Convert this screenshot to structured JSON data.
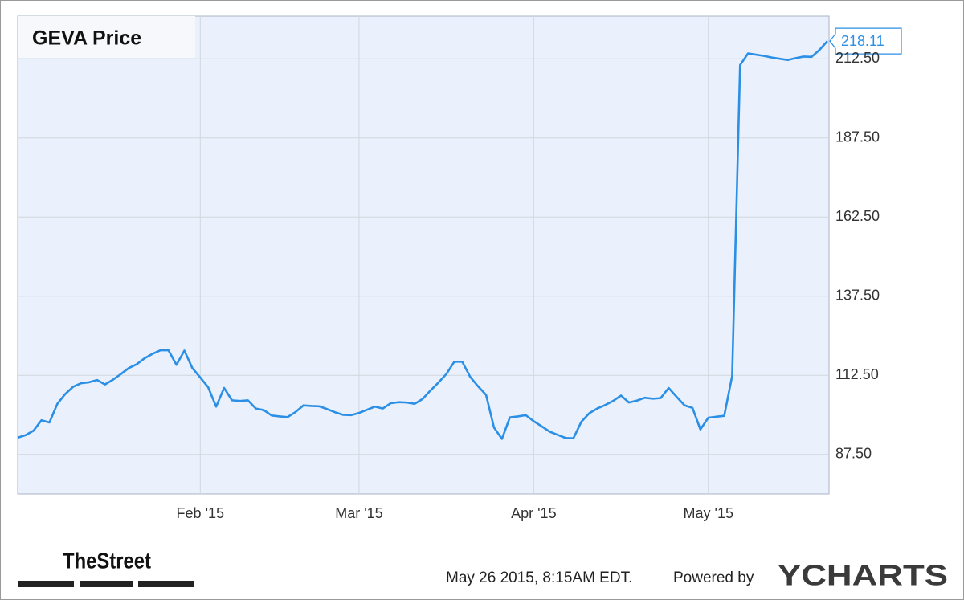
{
  "chart_data": {
    "type": "line",
    "title": "GEVA Price",
    "color": "#2b8fe6",
    "categories": [
      null,
      null,
      null,
      null,
      null,
      null,
      null,
      null,
      null,
      null,
      null,
      null,
      null,
      null,
      null,
      null,
      null,
      null,
      null,
      null,
      null,
      null,
      null,
      "Feb '15",
      null,
      null,
      null,
      null,
      null,
      null,
      null,
      null,
      null,
      null,
      null,
      null,
      null,
      null,
      null,
      null,
      null,
      null,
      null,
      "Mar '15",
      null,
      null,
      null,
      null,
      null,
      null,
      null,
      null,
      null,
      null,
      null,
      null,
      null,
      null,
      null,
      null,
      null,
      null,
      null,
      null,
      null,
      "Apr '15",
      null,
      null,
      null,
      null,
      null,
      null,
      null,
      null,
      null,
      null,
      null,
      null,
      null,
      null,
      null,
      null,
      null,
      null,
      null,
      null,
      null,
      "May '15",
      null,
      null,
      null,
      null,
      null,
      null,
      null,
      null,
      null,
      null,
      null,
      null,
      null,
      null,
      null
    ],
    "values": [
      92.8,
      93.6,
      95.0,
      98.3,
      97.6,
      103.5,
      106.6,
      108.9,
      110.0,
      110.3,
      111.0,
      109.6,
      111.1,
      112.9,
      114.8,
      116.0,
      117.9,
      119.3,
      120.4,
      120.4,
      115.8,
      120.3,
      114.8,
      111.8,
      108.7,
      102.6,
      108.5,
      104.6,
      104.4,
      104.6,
      102.0,
      101.5,
      99.8,
      99.5,
      99.3,
      100.9,
      103.0,
      102.8,
      102.7,
      101.8,
      100.8,
      100.0,
      99.9,
      100.6,
      101.6,
      102.6,
      102.0,
      103.7,
      104.0,
      103.9,
      103.5,
      105.0,
      107.7,
      110.2,
      112.9,
      116.8,
      116.8,
      112.0,
      109.0,
      106.3,
      96.0,
      92.4,
      99.2,
      99.5,
      99.9,
      98.0,
      96.4,
      94.7,
      93.7,
      92.7,
      92.6,
      97.8,
      100.5,
      102.0,
      103.1,
      104.4,
      106.1,
      103.9,
      104.5,
      105.4,
      105.1,
      105.3,
      108.5,
      105.7,
      103.0,
      102.2,
      95.4,
      99.1,
      99.4,
      99.7,
      112.3,
      210.5,
      214.2,
      213.8,
      213.4,
      212.9,
      212.5,
      212.1,
      212.7,
      213.2,
      213.1,
      215.3,
      218.11
    ],
    "ylim": [
      75,
      226
    ],
    "yticks": [
      {
        "value": 87.5,
        "label": "87.50"
      },
      {
        "value": 112.5,
        "label": "112.50"
      },
      {
        "value": 137.5,
        "label": "137.50"
      },
      {
        "value": 162.5,
        "label": "162.50"
      },
      {
        "value": 187.5,
        "label": "187.50"
      },
      {
        "value": 212.5,
        "label": "212.50"
      }
    ],
    "grid": true,
    "source": "TheStreet",
    "timestamp": "May 26 2015, 8:15AM EDT.",
    "powered_by": "Powered by",
    "brand": "YCHARTS"
  }
}
